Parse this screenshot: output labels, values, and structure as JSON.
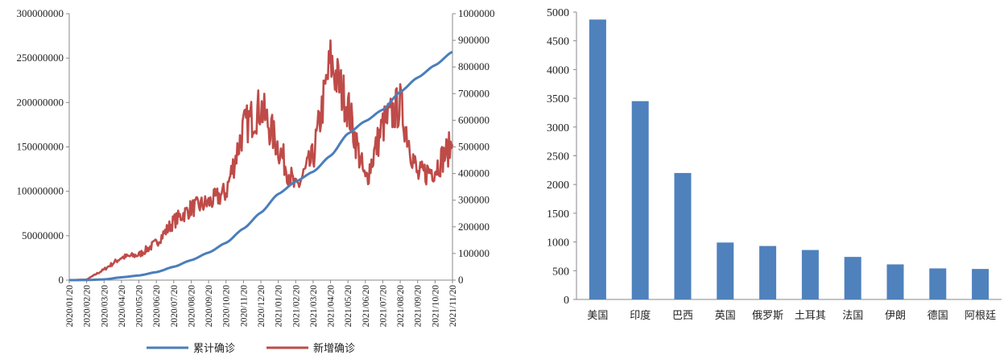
{
  "chart_data": [
    {
      "type": "line",
      "x_ticks": [
        "2020/01/20",
        "2020/02/20",
        "2020/03/20",
        "2020/04/20",
        "2020/05/20",
        "2020/06/20",
        "2020/07/20",
        "2020/08/20",
        "2020/09/20",
        "2020/10/20",
        "2020/11/20",
        "2020/12/20",
        "2021/01/20",
        "2021/02/20",
        "2021/03/20",
        "2021/04/20",
        "2021/05/20",
        "2021/06/20",
        "2021/07/20",
        "2021/08/20",
        "2021/09/20",
        "2021/10/20",
        "2021/11/20"
      ],
      "y_left": {
        "min": 0,
        "max": 300000000,
        "ticks": [
          "0",
          "50000000",
          "100000000",
          "150000000",
          "200000000",
          "250000000",
          "300000000"
        ]
      },
      "y_right": {
        "min": 0,
        "max": 1000000,
        "ticks": [
          "0",
          "100000",
          "200000",
          "300000",
          "400000",
          "500000",
          "600000",
          "700000",
          "800000",
          "900000",
          "1000000"
        ]
      },
      "series": [
        {
          "name": "累计确诊",
          "axis": "left",
          "color": "#4A7EBB",
          "values": [
            0,
            80000,
            800000,
            3200000,
            5200000,
            9000000,
            15000000,
            22500000,
            31000000,
            42000000,
            58000000,
            76000000,
            97000000,
            111000000,
            122000000,
            140000000,
            165000000,
            179000000,
            192000000,
            212000000,
            228000000,
            242000000,
            257000000
          ]
        },
        {
          "name": "新增确诊",
          "axis": "right",
          "color": "#BE4B48",
          "values": [
            0,
            2000,
            40000,
            85000,
            95000,
            140000,
            220000,
            270000,
            290000,
            330000,
            570000,
            650000,
            500000,
            340000,
            460000,
            820000,
            650000,
            370000,
            580000,
            660000,
            390000,
            420000,
            510000
          ]
        }
      ],
      "legend": {
        "position": "bottom"
      }
    },
    {
      "type": "bar",
      "categories": [
        "美国",
        "印度",
        "巴西",
        "英国",
        "俄罗斯",
        "土耳其",
        "法国",
        "伊朗",
        "德国",
        "阿根廷"
      ],
      "values": [
        4870,
        3450,
        2200,
        990,
        930,
        860,
        740,
        610,
        540,
        530
      ],
      "color": "#4F81BD",
      "y": {
        "min": 0,
        "max": 5000,
        "ticks": [
          "0",
          "500",
          "1000",
          "1500",
          "2000",
          "2500",
          "3000",
          "3500",
          "4000",
          "4500",
          "5000"
        ]
      }
    }
  ]
}
